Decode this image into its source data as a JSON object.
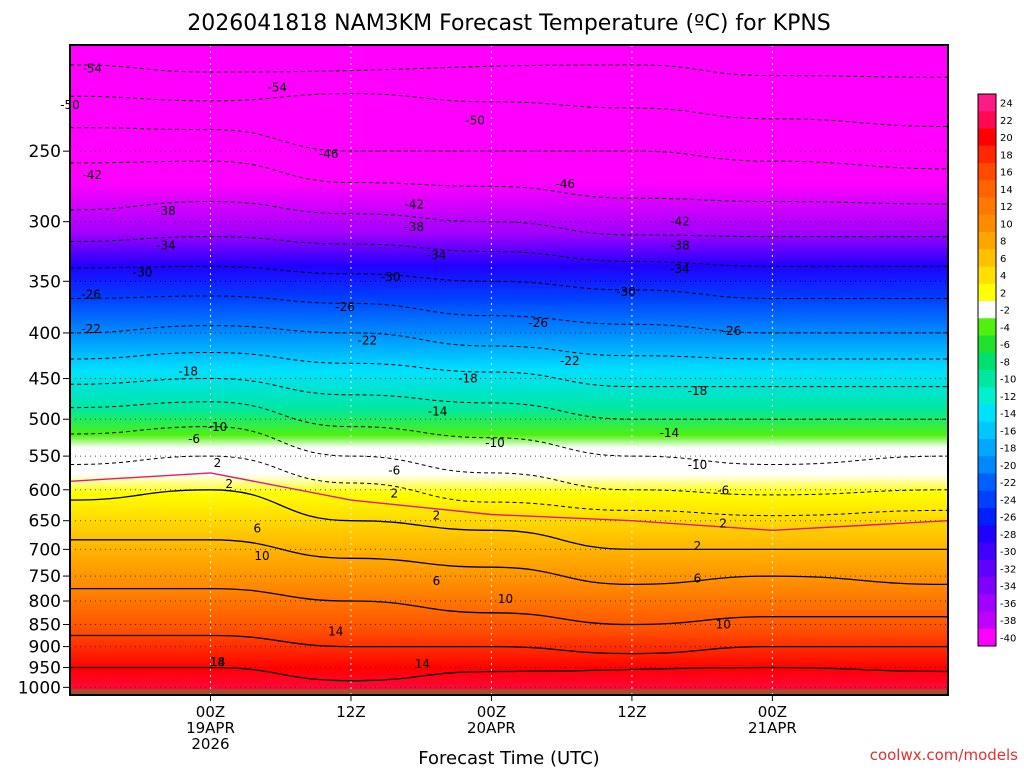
{
  "chart_data": {
    "type": "heatmap",
    "title": "2026041818 NAM3KM Forecast Temperature (ºC) for KPNS",
    "xlabel": "Forecast Time (UTC)",
    "ylabel": "",
    "watermark": "coolwx.com/models",
    "x_range_hours": [
      -6,
      69
    ],
    "y_range_hpa": [
      1020,
      190
    ],
    "y_scale": "log-pressure",
    "yticks": [
      {
        "label": "250",
        "p": 250
      },
      {
        "label": "300",
        "p": 300
      },
      {
        "label": "350",
        "p": 350
      },
      {
        "label": "400",
        "p": 400
      },
      {
        "label": "450",
        "p": 450
      },
      {
        "label": "500",
        "p": 500
      },
      {
        "label": "550",
        "p": 550
      },
      {
        "label": "600",
        "p": 600
      },
      {
        "label": "650",
        "p": 650
      },
      {
        "label": "700",
        "p": 700
      },
      {
        "label": "750",
        "p": 750
      },
      {
        "label": "800",
        "p": 800
      },
      {
        "label": "850",
        "p": 850
      },
      {
        "label": "900",
        "p": 900
      },
      {
        "label": "950",
        "p": 950
      },
      {
        "label": "1000",
        "p": 1000
      }
    ],
    "xticks": [
      {
        "hour": 6,
        "lines": [
          "00Z",
          "19APR",
          "2026"
        ]
      },
      {
        "hour": 18,
        "lines": [
          "12Z"
        ]
      },
      {
        "hour": 30,
        "lines": [
          "00Z",
          "20APR"
        ]
      },
      {
        "hour": 42,
        "lines": [
          "12Z"
        ]
      },
      {
        "hour": 54,
        "lines": [
          "00Z",
          "21APR"
        ]
      }
    ],
    "colorbar": {
      "labels": [
        "24",
        "22",
        "20",
        "18",
        "16",
        "14",
        "12",
        "10",
        "8",
        "6",
        "4",
        "2",
        "-2",
        "-4",
        "-6",
        "-8",
        "-10",
        "-12",
        "-14",
        "-16",
        "-18",
        "-20",
        "-22",
        "-24",
        "-26",
        "-28",
        "-30",
        "-32",
        "-34",
        "-36",
        "-38",
        "-40"
      ],
      "colors": [
        "#ff1a8a",
        "#ff0a50",
        "#ff0000",
        "#ff2800",
        "#ff4a00",
        "#ff6400",
        "#ff7800",
        "#ff8c00",
        "#ffa500",
        "#ffc000",
        "#ffe000",
        "#ffff00",
        "#ffffff",
        "#50f010",
        "#20e030",
        "#00e070",
        "#00e8a0",
        "#00f0d0",
        "#00e0ff",
        "#00c8ff",
        "#00a8ff",
        "#0088ff",
        "#0060ff",
        "#0040ff",
        "#0020ff",
        "#2000ff",
        "#4000ff",
        "#6000ff",
        "#8000ff",
        "#a000ff",
        "#c000ff",
        "#ff00ff"
      ]
    },
    "sfc_color": "#a0522d",
    "freezing_color": "#e0187a",
    "profile_pressures": [
      1000,
      950,
      900,
      850,
      800,
      750,
      700,
      650,
      600,
      550,
      500,
      450,
      400,
      350,
      300,
      250,
      200
    ],
    "profile_times": [
      -6,
      6,
      18,
      30,
      42,
      54,
      69
    ],
    "temperature_grid": [
      [
        21,
        22,
        19,
        22,
        17,
        24,
        22
      ],
      [
        18,
        18,
        16,
        17,
        16,
        18,
        17
      ],
      [
        15,
        15,
        14,
        14,
        13,
        14,
        14
      ],
      [
        13,
        13,
        12,
        11,
        10,
        11,
        11
      ],
      [
        11,
        11,
        10,
        9,
        8,
        8,
        8
      ],
      [
        9,
        9,
        8,
        7,
        5,
        6,
        5
      ],
      [
        7,
        7,
        5,
        4,
        2,
        2,
        2
      ],
      [
        4,
        4,
        2,
        1,
        0,
        -1,
        0
      ],
      [
        1,
        2,
        -1,
        -4,
        -6,
        -7,
        -6
      ],
      [
        -3,
        -2,
        -6,
        -8,
        -10,
        -11,
        -10
      ],
      [
        -8,
        -7,
        -11,
        -12,
        -14,
        -14,
        -14
      ],
      [
        -15,
        -14,
        -16,
        -17,
        -19,
        -19,
        -19
      ],
      [
        -22,
        -21,
        -22,
        -24,
        -25,
        -26,
        -26
      ],
      [
        -28,
        -28,
        -29,
        -30,
        -31,
        -32,
        -32
      ],
      [
        -37,
        -36,
        -37,
        -38,
        -40,
        -40,
        -40
      ],
      [
        -43,
        -43,
        -46,
        -46,
        -46,
        -47,
        -48
      ],
      [
        -54,
        -55,
        -52,
        -53,
        -54,
        -55,
        -55
      ]
    ],
    "contour_labels": [
      {
        "t": "-54",
        "hour": -4.1,
        "p": 202
      },
      {
        "t": "-54",
        "hour": 11.7,
        "p": 212
      },
      {
        "t": "-50",
        "hour": -6.0,
        "p": 222
      },
      {
        "t": "-50",
        "hour": 28.6,
        "p": 231
      },
      {
        "t": "-46",
        "hour": 16.1,
        "p": 252
      },
      {
        "t": "-46",
        "hour": 36.3,
        "p": 272
      },
      {
        "t": "-42",
        "hour": -4.1,
        "p": 266
      },
      {
        "t": "-42",
        "hour": 23.4,
        "p": 287
      },
      {
        "t": "-42",
        "hour": 46.1,
        "p": 300
      },
      {
        "t": "-38",
        "hour": 2.2,
        "p": 292
      },
      {
        "t": "-38",
        "hour": 23.4,
        "p": 304
      },
      {
        "t": "-38",
        "hour": 46.1,
        "p": 319
      },
      {
        "t": "-34",
        "hour": 2.2,
        "p": 319
      },
      {
        "t": "-34",
        "hour": 25.3,
        "p": 327
      },
      {
        "t": "-34",
        "hour": 46.1,
        "p": 339
      },
      {
        "t": "-30",
        "hour": 0.2,
        "p": 342
      },
      {
        "t": "-30",
        "hour": 21.4,
        "p": 346
      },
      {
        "t": "-30",
        "hour": 41.5,
        "p": 360
      },
      {
        "t": "-26",
        "hour": -4.2,
        "p": 362
      },
      {
        "t": "-26",
        "hour": 17.5,
        "p": 374
      },
      {
        "t": "-26",
        "hour": 34.0,
        "p": 390
      },
      {
        "t": "-26",
        "hour": 50.5,
        "p": 398
      },
      {
        "t": "-22",
        "hour": -4.2,
        "p": 396
      },
      {
        "t": "-22",
        "hour": 19.4,
        "p": 408
      },
      {
        "t": "-22",
        "hour": 36.7,
        "p": 430
      },
      {
        "t": "-18",
        "hour": 4.1,
        "p": 442
      },
      {
        "t": "-18",
        "hour": 28.0,
        "p": 450
      },
      {
        "t": "-18",
        "hour": 47.6,
        "p": 465
      },
      {
        "t": "-14",
        "hour": 25.4,
        "p": 490
      },
      {
        "t": "-14",
        "hour": 45.2,
        "p": 518
      },
      {
        "t": "-10",
        "hour": 6.6,
        "p": 510
      },
      {
        "t": "-10",
        "hour": 30.3,
        "p": 532
      },
      {
        "t": "-10",
        "hour": 47.6,
        "p": 563
      },
      {
        "t": "-6",
        "hour": 4.6,
        "p": 526
      },
      {
        "t": "-6",
        "hour": 21.7,
        "p": 571
      },
      {
        "t": "-6",
        "hour": 49.8,
        "p": 601
      },
      {
        "t": "2",
        "hour": 6.6,
        "p": 560
      },
      {
        "t": "2",
        "hour": 7.6,
        "p": 591
      },
      {
        "t": "2",
        "hour": 21.7,
        "p": 606
      },
      {
        "t": "2",
        "hour": 25.3,
        "p": 641
      },
      {
        "t": "2",
        "hour": 49.8,
        "p": 655
      },
      {
        "t": "2",
        "hour": 47.6,
        "p": 694
      },
      {
        "t": "6",
        "hour": 10.0,
        "p": 663
      },
      {
        "t": "6",
        "hour": 25.3,
        "p": 760
      },
      {
        "t": "6",
        "hour": 47.6,
        "p": 755
      },
      {
        "t": "10",
        "hour": 10.4,
        "p": 712
      },
      {
        "t": "10",
        "hour": 31.2,
        "p": 796
      },
      {
        "t": "10",
        "hour": 49.8,
        "p": 850
      },
      {
        "t": "14",
        "hour": 16.7,
        "p": 866
      },
      {
        "t": "14",
        "hour": 24.1,
        "p": 942
      },
      {
        "t": "14",
        "hour": 6.6,
        "p": 937
      },
      {
        "t": "18",
        "hour": 6.6,
        "p": 937
      }
    ]
  }
}
